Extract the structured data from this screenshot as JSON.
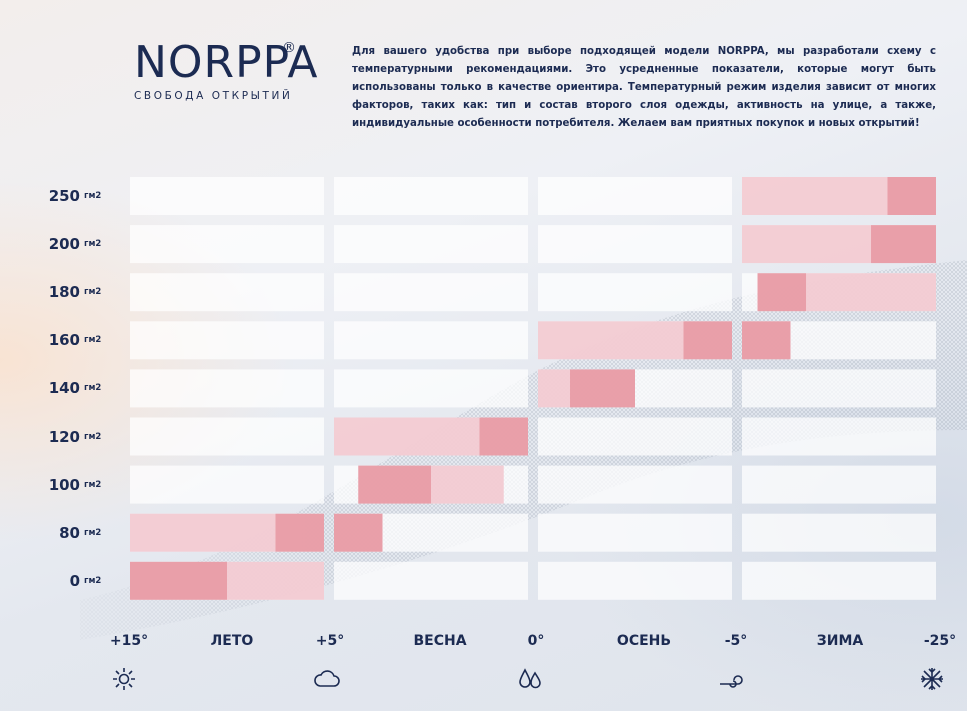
{
  "brand": {
    "name": "NORPPA",
    "registered": "®",
    "tagline": "СВОБОДА ОТКРЫТИЙ"
  },
  "intro": "Для вашего удобства при выборе подходящей модели NORPPA, мы разработали схему с температурными рекомендациями. Это усредненные показатели, которые могут быть использованы только в качестве ориентира. Температурный режим изделия зависит от многих факторов, таких как: тип и состав второго слоя одежды, активность на улице, а также, индивидуальные особенности потребителя. Желаем вам приятных покупок и новых открытий!",
  "colors": {
    "text": "#1c2b52",
    "cell": "#ffffff",
    "range_strong": "#e89aa4",
    "range_light": "#f2c6cc"
  },
  "chart_data": {
    "type": "range",
    "y_unit": "гм2",
    "y_categories": [
      "250",
      "200",
      "180",
      "160",
      "140",
      "120",
      "100",
      "80",
      "0"
    ],
    "season_labels": [
      "ЛЕТО",
      "ВЕСНА",
      "ОСЕНЬ",
      "ЗИМА"
    ],
    "temperature_ticks": [
      "+15°",
      "+5°",
      "0°",
      "-5°",
      "-25°"
    ],
    "icons": [
      "sun-icon",
      "cloud-icon",
      "drops-icon",
      "wind-icon",
      "snowflake-icon"
    ],
    "columns": [
      "ЛЕТО-1",
      "ЛЕТО-2",
      "ВЕСНА-1",
      "ВЕСНА-2",
      "ОСЕНЬ-1",
      "ОСЕНЬ-2",
      "ЗИМА-1",
      "ЗИМА-2"
    ],
    "ranges": [
      {
        "weight": "250",
        "strong": [
          7.5,
          8
        ],
        "light": [
          6,
          7.5
        ]
      },
      {
        "weight": "200",
        "strong": [
          7.33,
          8
        ],
        "light": [
          6,
          7.33
        ]
      },
      {
        "weight": "180",
        "strong": [
          6.16,
          6.66
        ],
        "light": [
          6.66,
          8
        ]
      },
      {
        "weight": "160",
        "strong": [
          5.5,
          6.5
        ],
        "light": [
          4,
          5.5
        ]
      },
      {
        "weight": "140",
        "strong": [
          4.33,
          5
        ],
        "light": [
          4,
          4.33
        ]
      },
      {
        "weight": "120",
        "strong": [
          3.5,
          4
        ],
        "light": [
          2,
          3.5
        ]
      },
      {
        "weight": "100",
        "strong": [
          2.25,
          3
        ],
        "light": [
          3,
          3.75
        ]
      },
      {
        "weight": "80",
        "strong": [
          1.5,
          2.5
        ],
        "light": [
          0,
          1.5
        ]
      },
      {
        "weight": "0",
        "strong": [
          0,
          1
        ],
        "light": [
          1,
          2
        ]
      }
    ]
  }
}
